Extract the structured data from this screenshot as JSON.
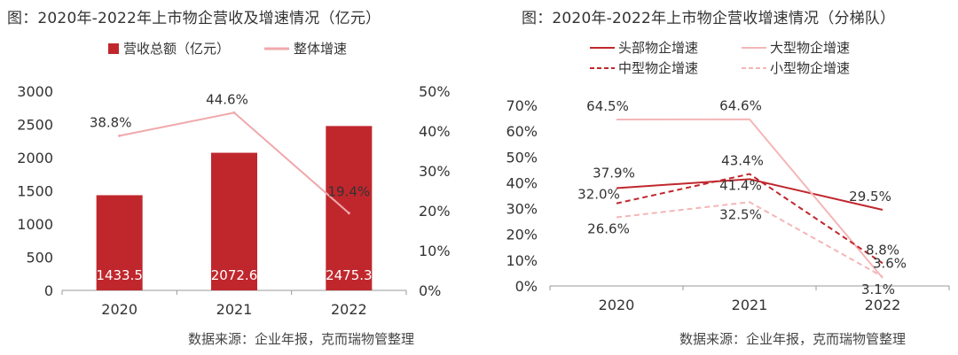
{
  "colors": {
    "dark_red": "#c0272d",
    "pink": "#f0a8ab",
    "light_pink": "#f4b6b8",
    "axis": "#999999"
  },
  "left": {
    "title": "图：2020年-2022年上市物企营收及增速情况（亿元）",
    "source": "数据来源：企业年报，克而瑞物管整理",
    "chart_data": {
      "type": "bar",
      "title": "图：2020年-2022年上市物企营收及增速情况（亿元）",
      "categories": [
        "2020",
        "2021",
        "2022"
      ],
      "ylim": [
        0,
        3000
      ],
      "y_ticks": [
        0,
        500,
        1000,
        1500,
        2000,
        2500,
        3000
      ],
      "y2lim": [
        0,
        50
      ],
      "y2_ticks": [
        "0%",
        "10%",
        "20%",
        "30%",
        "40%",
        "50%"
      ],
      "legend_position": "top",
      "series": [
        {
          "name": "营收总额（亿元）",
          "type": "bar",
          "axis": "left",
          "color": "#c0272d",
          "values": [
            1433.5,
            2072.6,
            2475.3
          ],
          "labels": [
            "1433.5",
            "2072.6",
            "2475.3"
          ]
        },
        {
          "name": "整体增速",
          "type": "line",
          "axis": "right",
          "color": "#f0a8ab",
          "values": [
            38.8,
            44.6,
            19.4
          ],
          "labels": [
            "38.8%",
            "44.6%",
            "19.4%"
          ]
        }
      ]
    }
  },
  "right": {
    "title": "图：2020年-2022年上市物企营收增速情况（分梯队）",
    "source": "数据来源：企业年报，克而瑞物管整理",
    "chart_data": {
      "type": "line",
      "title": "图：2020年-2022年上市物企营收增速情况（分梯队）",
      "categories": [
        "2020",
        "2021",
        "2022"
      ],
      "ylim": [
        0,
        70
      ],
      "y_ticks": [
        "0%",
        "10%",
        "20%",
        "30%",
        "40%",
        "50%",
        "60%",
        "70%"
      ],
      "legend_position": "top",
      "series": [
        {
          "name": "头部物企增速",
          "color": "#c0272d",
          "dash": "solid",
          "values": [
            37.9,
            41.4,
            29.5
          ],
          "labels": [
            "37.9%",
            "41.4%",
            "29.5%"
          ]
        },
        {
          "name": "大型物企增速",
          "color": "#f4b6b8",
          "dash": "solid",
          "values": [
            64.5,
            64.6,
            3.1
          ],
          "labels": [
            "64.5%",
            "64.6%",
            "3.1%"
          ]
        },
        {
          "name": "中型物企增速",
          "color": "#c0272d",
          "dash": "dashed",
          "values": [
            32.0,
            43.4,
            8.8
          ],
          "labels": [
            "32.0%",
            "43.4%",
            "8.8%"
          ]
        },
        {
          "name": "小型物企增速",
          "color": "#f4b6b8",
          "dash": "dashed",
          "values": [
            26.6,
            32.5,
            3.6
          ],
          "labels": [
            "26.6%",
            "32.5%",
            "3.6%"
          ]
        }
      ]
    }
  }
}
